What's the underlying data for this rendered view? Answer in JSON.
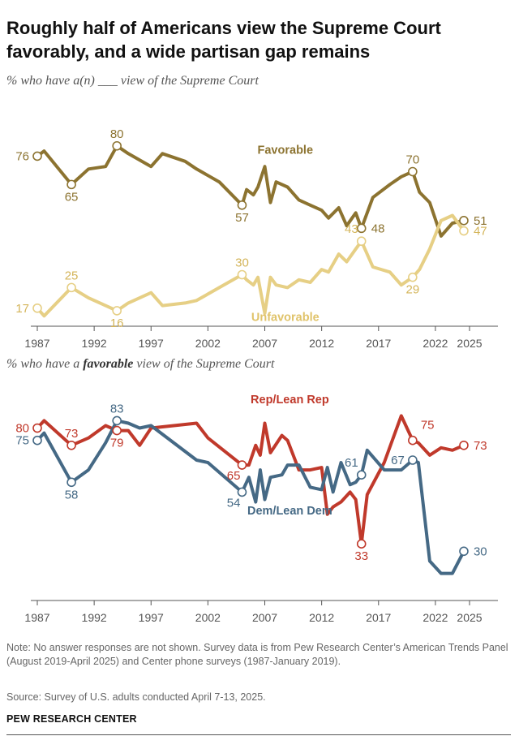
{
  "title": "Roughly half of Americans view the Supreme Court favorably, and a wide partisan gap remains",
  "subtitle1_pre": "% who have a(n) ___ view of the Supreme Court",
  "subtitle2_pre": "% who have a ",
  "subtitle2_bold": "favorable",
  "subtitle2_post": " view of the Supreme Court",
  "note": "Note: No answer responses are not shown. Survey data is from Pew Research Center’s American Trends Panel (August 2019-April 2025) and Center phone surveys (1987-January 2019).",
  "source": "Source: Survey of U.S. adults conducted April 7-13, 2025.",
  "org": "PEW RESEARCH CENTER",
  "colors": {
    "favorable": "#8c7330",
    "unfavorable": "#e6cf85",
    "unfavorable_label": "#e0c36a",
    "rep": "#c0392b",
    "dem": "#456985",
    "axis": "#555555"
  },
  "chart_data": [
    {
      "type": "line",
      "title": "% who have a(n) ___ view of the Supreme Court",
      "xlim": [
        1987,
        2025.5
      ],
      "ylim": [
        10,
        90
      ],
      "xticks": [
        1987,
        1992,
        1997,
        2002,
        2007,
        2012,
        2017,
        2022,
        2025
      ],
      "series": [
        {
          "name": "Favorable",
          "color_key": "favorable",
          "x": [
            1987,
            1987.6,
            1990,
            1991.5,
            1993,
            1994,
            1995,
            1997,
            1998,
            2000,
            2001,
            2003,
            2005,
            2005.4,
            2006,
            2006.4,
            2007,
            2007.5,
            2008,
            2009,
            2010,
            2011,
            2012,
            2012.6,
            2013.5,
            2014.2,
            2015,
            2015.5,
            2016.5,
            2018,
            2019,
            2020,
            2020.6,
            2021.5,
            2022.5,
            2023.5,
            2024.5
          ],
          "y": [
            76,
            78,
            65,
            71,
            72,
            80,
            77,
            72,
            77,
            74,
            71,
            66,
            57,
            63,
            61,
            64,
            72,
            58,
            66,
            64,
            59,
            57,
            55,
            52,
            56,
            49,
            54,
            48,
            60,
            65,
            68,
            70,
            62,
            58,
            45,
            50,
            51
          ],
          "labels": [
            {
              "x": 1987,
              "y": 76,
              "text": "76",
              "pos": "left"
            },
            {
              "x": 1990,
              "y": 65,
              "text": "65",
              "pos": "below"
            },
            {
              "x": 1994,
              "y": 80,
              "text": "80",
              "pos": "above"
            },
            {
              "x": 2005,
              "y": 57,
              "text": "57",
              "pos": "below"
            },
            {
              "x": 2015.5,
              "y": 48,
              "text": "48",
              "pos": "right"
            },
            {
              "x": 2020,
              "y": 70,
              "text": "70",
              "pos": "above"
            },
            {
              "x": 2024.5,
              "y": 51,
              "text": "51",
              "pos": "right"
            }
          ]
        },
        {
          "name": "Unfavorable",
          "color_key": "unfavorable",
          "x": [
            1987,
            1987.6,
            1990,
            1991.5,
            1993,
            1994,
            1995,
            1997,
            1998,
            2000,
            2001,
            2003,
            2005,
            2005.4,
            2006,
            2006.4,
            2007,
            2007.5,
            2008,
            2009,
            2010,
            2011,
            2012,
            2012.6,
            2013.5,
            2014.2,
            2015,
            2015.5,
            2016.5,
            2018,
            2019,
            2020,
            2020.6,
            2021.5,
            2022.5,
            2023.5,
            2024.5
          ],
          "y": [
            17,
            14,
            25,
            21,
            18,
            16,
            19,
            23,
            18,
            19,
            20,
            25,
            30,
            28,
            26,
            29,
            15,
            29,
            26,
            25,
            28,
            27,
            32,
            31,
            38,
            35,
            40,
            43,
            33,
            31,
            26,
            29,
            32,
            40,
            51,
            53,
            47
          ],
          "labels": [
            {
              "x": 1987,
              "y": 17,
              "text": "17",
              "pos": "left"
            },
            {
              "x": 1990,
              "y": 25,
              "text": "25",
              "pos": "above"
            },
            {
              "x": 1994,
              "y": 16,
              "text": "16",
              "pos": "below"
            },
            {
              "x": 2005,
              "y": 30,
              "text": "30",
              "pos": "above"
            },
            {
              "x": 2015.5,
              "y": 43,
              "text": "43",
              "pos": "aboveleft"
            },
            {
              "x": 2020,
              "y": 29,
              "text": "29",
              "pos": "below"
            },
            {
              "x": 2024.5,
              "y": 47,
              "text": "47",
              "pos": "right"
            }
          ]
        }
      ],
      "series_labels": [
        {
          "text": "Favorable",
          "color_key": "favorable",
          "x": 2008.8,
          "y": 77
        },
        {
          "text": "Unfavorable",
          "color_key": "unfavorable_label",
          "x": 2008.8,
          "y": 12
        }
      ]
    },
    {
      "type": "line",
      "title": "% who have a favorable view of the Supreme Court",
      "xlim": [
        1987,
        2025.5
      ],
      "ylim": [
        10,
        95
      ],
      "xticks": [
        1987,
        1992,
        1997,
        2002,
        2007,
        2012,
        2017,
        2022,
        2025
      ],
      "series": [
        {
          "name": "Rep/Lean Rep",
          "color_key": "rep",
          "x": [
            1987,
            1987.6,
            1990,
            1991.5,
            1993,
            1994,
            1995,
            1996,
            1997,
            2001,
            2002,
            2005,
            2005.6,
            2006.2,
            2006.6,
            2007,
            2007.5,
            2008.5,
            2009,
            2010,
            2011,
            2012,
            2012.5,
            2013,
            2013.7,
            2014.5,
            2015,
            2015.5,
            2016,
            2017.5,
            2019,
            2020,
            2020.5,
            2021.5,
            2022.5,
            2023.5,
            2024.5
          ],
          "y": [
            80,
            83,
            73,
            76,
            81,
            79,
            79,
            73,
            80,
            82,
            76,
            65,
            65,
            73,
            69,
            82,
            70,
            77,
            75,
            63,
            63,
            64,
            45,
            48,
            50,
            54,
            51,
            33,
            53,
            66,
            85,
            75,
            74,
            69,
            72,
            71,
            73
          ],
          "labels": [
            {
              "x": 1987,
              "y": 80,
              "text": "80",
              "pos": "left"
            },
            {
              "x": 1990,
              "y": 73,
              "text": "73",
              "pos": "above"
            },
            {
              "x": 1994,
              "y": 79,
              "text": "79",
              "pos": "below"
            },
            {
              "x": 2005,
              "y": 65,
              "text": "65",
              "pos": "belowleft"
            },
            {
              "x": 2015.5,
              "y": 33,
              "text": "33",
              "pos": "below"
            },
            {
              "x": 2020,
              "y": 75,
              "text": "75",
              "pos": "aboverightfar"
            },
            {
              "x": 2024.5,
              "y": 73,
              "text": "73",
              "pos": "right"
            }
          ]
        },
        {
          "name": "Dem/Lean Dem",
          "color_key": "dem",
          "x": [
            1987,
            1987.6,
            1990,
            1991.5,
            1993,
            1994,
            1995,
            1996,
            1997,
            2001,
            2002,
            2005,
            2005.6,
            2006.2,
            2006.6,
            2007,
            2007.5,
            2008.5,
            2009,
            2010,
            2011,
            2012,
            2012.5,
            2013,
            2013.7,
            2014.5,
            2015,
            2015.5,
            2016,
            2017.5,
            2019,
            2020,
            2020.5,
            2021.5,
            2022.5,
            2023.5,
            2024.5
          ],
          "y": [
            75,
            78,
            58,
            63,
            74,
            83,
            82,
            80,
            81,
            67,
            66,
            54,
            60,
            50,
            63,
            51,
            60,
            61,
            65,
            65,
            56,
            55,
            64,
            54,
            66,
            57,
            58,
            61,
            71,
            63,
            63,
            67,
            66,
            26,
            21,
            21,
            30
          ],
          "labels": [
            {
              "x": 1987,
              "y": 75,
              "text": "75",
              "pos": "left"
            },
            {
              "x": 1990,
              "y": 58,
              "text": "58",
              "pos": "below"
            },
            {
              "x": 1994,
              "y": 83,
              "text": "83",
              "pos": "above"
            },
            {
              "x": 2005,
              "y": 54,
              "text": "54",
              "pos": "belowleft"
            },
            {
              "x": 2015.5,
              "y": 61,
              "text": "61",
              "pos": "aboveleft"
            },
            {
              "x": 2020,
              "y": 67,
              "text": "67",
              "pos": "left"
            },
            {
              "x": 2024.5,
              "y": 30,
              "text": "30",
              "pos": "right"
            }
          ]
        }
      ],
      "series_labels": [
        {
          "text": "Rep/Lean Rep",
          "color_key": "rep",
          "x": 2009.2,
          "y": 90
        },
        {
          "text": "Dem/Lean Dem",
          "color_key": "dem",
          "x": 2009.2,
          "y": 45
        }
      ]
    }
  ]
}
